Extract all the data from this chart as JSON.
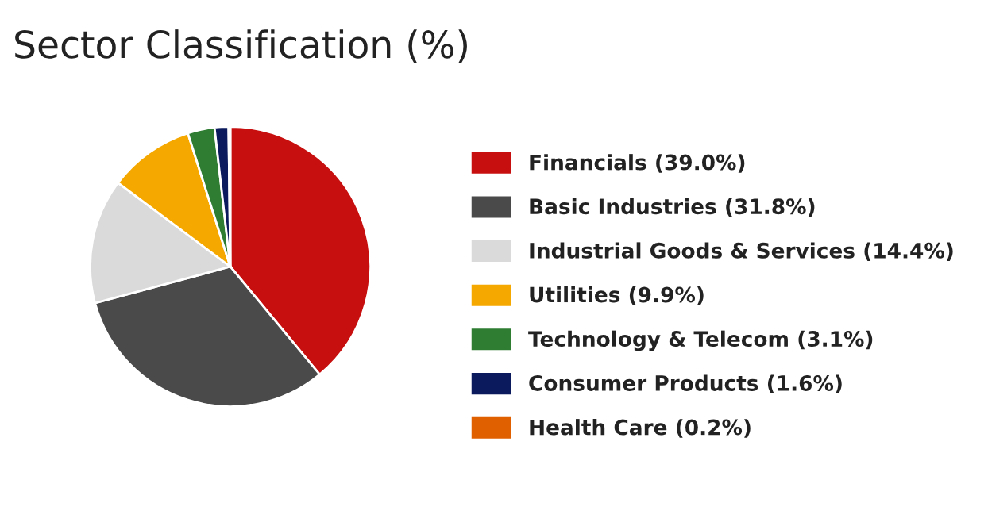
{
  "chart_data": {
    "type": "pie",
    "title": "Sector Classification (%)",
    "categories": [
      "Financials",
      "Basic Industries",
      "Industrial Goods & Services",
      "Utilities",
      "Technology & Telecom",
      "Consumer Products",
      "Health Care"
    ],
    "values": [
      39.0,
      31.8,
      14.4,
      9.9,
      3.1,
      1.6,
      0.2
    ],
    "value_labels": [
      "(39.0%)",
      "(31.8%)",
      "(14.4%)",
      "(9.9%)",
      "(3.1%)",
      "(1.6%)",
      "(0.2%)"
    ],
    "colors": [
      "#c80f0f",
      "#4a4a4a",
      "#dadada",
      "#f5a800",
      "#2e7d32",
      "#0b1a5c",
      "#e06000"
    ],
    "legend": "right"
  }
}
